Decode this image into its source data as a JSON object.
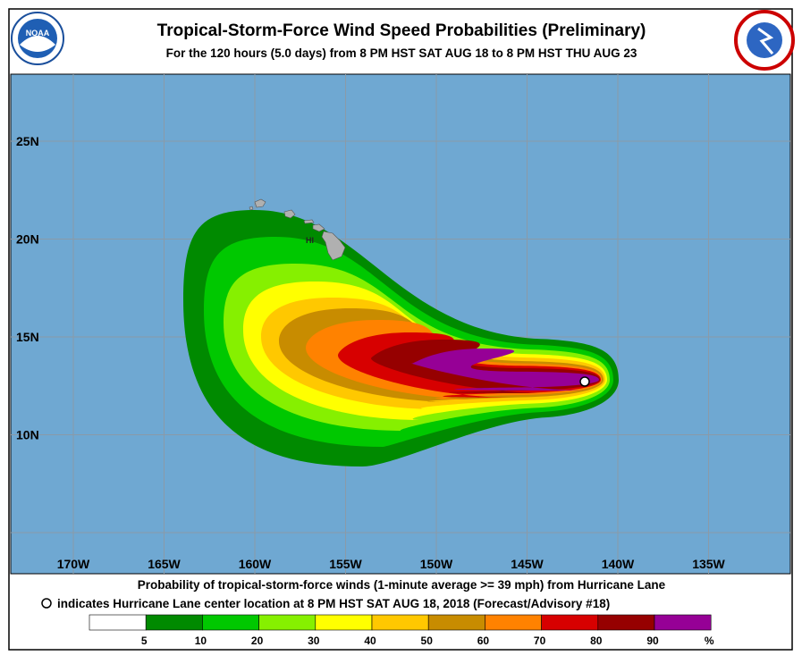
{
  "header": {
    "title": "Tropical-Storm-Force Wind Speed Probabilities (Preliminary)",
    "subtitle": "For the 120 hours (5.0 days) from 8 PM HST SAT AUG 18 to 8 PM HST THU AUG 23",
    "noaa_logo": "NOAA"
  },
  "map": {
    "lat_labels": [
      "25N",
      "20N",
      "15N",
      "10N"
    ],
    "lon_labels": [
      "170W",
      "165W",
      "160W",
      "155W",
      "150W",
      "145W",
      "140W",
      "135W"
    ],
    "island_label": "HI"
  },
  "footer": {
    "line1": "Probability of tropical-storm-force winds (1-minute average >= 39 mph) from Hurricane Lane",
    "line2": "indicates Hurricane Lane center location at 8 PM HST SAT AUG 18, 2018 (Forecast/Advisory #18)"
  },
  "legend": {
    "colors": [
      "#ffffff",
      "#008a00",
      "#00c800",
      "#86f000",
      "#ffff00",
      "#ffc800",
      "#c88c00",
      "#ff8200",
      "#d70000",
      "#960000",
      "#960096"
    ],
    "labels": [
      "5",
      "10",
      "20",
      "30",
      "40",
      "50",
      "60",
      "70",
      "80",
      "90",
      "%"
    ]
  }
}
